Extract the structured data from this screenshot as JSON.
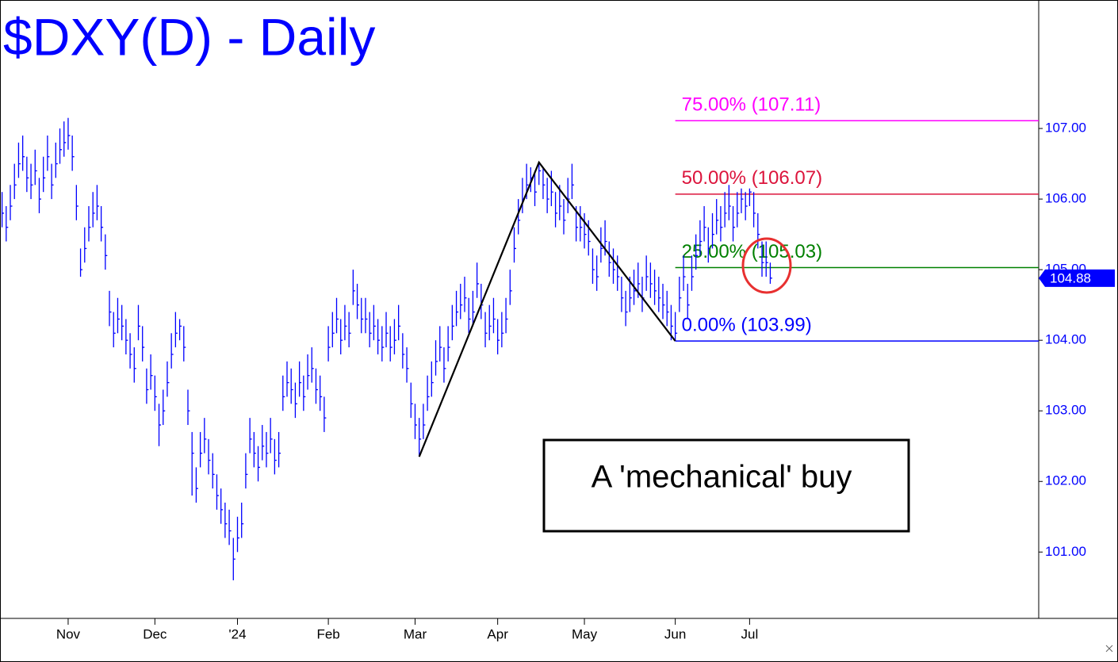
{
  "chart_data": {
    "type": "ohlc",
    "title": "$DXY(D) - Daily",
    "color": "#0000ff",
    "xlim": [
      -0.5,
      251
    ],
    "xticks": [
      {
        "value": 16,
        "label": "Nov"
      },
      {
        "value": 37,
        "label": "Dec"
      },
      {
        "value": 57,
        "label": "'24"
      },
      {
        "value": 79,
        "label": "Feb"
      },
      {
        "value": 100,
        "label": "Mar"
      },
      {
        "value": 120,
        "label": "Apr"
      },
      {
        "value": 141,
        "label": "May"
      },
      {
        "value": 163,
        "label": "Jun"
      },
      {
        "value": 181,
        "label": "Jul"
      }
    ],
    "ylim": [
      100.06,
      108.82
    ],
    "yticks": [
      {
        "value": 101,
        "label": "101.00"
      },
      {
        "value": 102,
        "label": "102.00"
      },
      {
        "value": 103,
        "label": "103.00"
      },
      {
        "value": 104,
        "label": "104.00"
      },
      {
        "value": 105,
        "label": "105.00"
      },
      {
        "value": 106,
        "label": "106.00"
      },
      {
        "value": 107,
        "label": "107.00"
      }
    ],
    "close": [
      105.8,
      105.6,
      105.9,
      106.2,
      106.5,
      106.6,
      106.3,
      106.2,
      106.4,
      106.0,
      106.3,
      106.6,
      106.2,
      106.5,
      106.7,
      106.8,
      106.9,
      106.6,
      105.9,
      105.0,
      105.3,
      105.6,
      105.8,
      105.9,
      105.6,
      105.2,
      104.4,
      104.1,
      104.3,
      104.2,
      104.0,
      103.8,
      103.6,
      104.2,
      103.9,
      103.3,
      103.5,
      103.2,
      102.8,
      103.0,
      103.4,
      103.8,
      104.1,
      104.2,
      103.9,
      103.0,
      102.4,
      101.9,
      102.4,
      102.6,
      102.3,
      102.1,
      101.8,
      101.6,
      101.4,
      101.3,
      100.9,
      101.2,
      101.4,
      102.1,
      102.6,
      102.4,
      102.2,
      102.5,
      102.4,
      102.6,
      102.3,
      102.4,
      103.2,
      103.4,
      103.3,
      103.1,
      103.4,
      103.2,
      103.5,
      103.6,
      103.3,
      103.2,
      102.9,
      103.9,
      104.1,
      104.3,
      104.0,
      104.2,
      104.1,
      104.7,
      104.5,
      104.3,
      104.3,
      104.1,
      104.2,
      104.0,
      103.9,
      104.1,
      103.9,
      104.0,
      104.2,
      103.8,
      103.6,
      103.1,
      102.8,
      102.6,
      102.8,
      103.2,
      103.4,
      103.7,
      103.9,
      103.6,
      103.9,
      104.2,
      104.4,
      104.5,
      104.6,
      104.3,
      104.4,
      104.8,
      104.5,
      104.1,
      104.2,
      104.3,
      104.0,
      104.1,
      104.3,
      104.7,
      105.3,
      105.7,
      106.0,
      106.2,
      106.3,
      106.1,
      106.4,
      106.2,
      106.0,
      106.1,
      105.8,
      105.9,
      105.7,
      106.0,
      106.2,
      105.6,
      105.6,
      105.5,
      105.4,
      105.0,
      104.9,
      105.3,
      105.4,
      105.1,
      105.0,
      104.9,
      104.6,
      104.4,
      104.6,
      104.7,
      104.8,
      104.6,
      104.9,
      104.8,
      104.7,
      104.6,
      104.5,
      104.4,
      104.2,
      104.1,
      104.6,
      104.9,
      104.5,
      104.9,
      105.2,
      105.4,
      105.6,
      105.3,
      105.5,
      105.7,
      105.6,
      105.8,
      105.9,
      105.6,
      105.8,
      106.0,
      105.9,
      106.1,
      105.8,
      105.5,
      105.1,
      105.1,
      104.88
    ],
    "high": [
      106.1,
      105.9,
      106.2,
      106.5,
      106.8,
      106.9,
      106.6,
      106.5,
      106.7,
      106.3,
      106.6,
      106.9,
      106.5,
      106.8,
      107.0,
      107.1,
      107.15,
      106.9,
      106.2,
      105.3,
      105.6,
      105.9,
      106.1,
      106.2,
      105.9,
      105.5,
      104.7,
      104.4,
      104.6,
      104.5,
      104.3,
      104.1,
      103.9,
      104.5,
      104.2,
      103.6,
      103.8,
      103.5,
      103.1,
      103.3,
      103.7,
      104.1,
      104.4,
      104.3,
      104.2,
      103.3,
      102.7,
      102.2,
      102.7,
      102.9,
      102.6,
      102.4,
      102.1,
      101.9,
      101.7,
      101.6,
      101.2,
      101.5,
      101.7,
      102.4,
      102.9,
      102.7,
      102.5,
      102.8,
      102.7,
      102.9,
      102.6,
      102.7,
      103.5,
      103.7,
      103.6,
      103.4,
      103.7,
      103.5,
      103.8,
      103.9,
      103.6,
      103.5,
      103.2,
      104.2,
      104.4,
      104.6,
      104.3,
      104.5,
      104.4,
      105.0,
      104.8,
      104.6,
      104.6,
      104.4,
      104.5,
      104.3,
      104.2,
      104.4,
      104.2,
      104.3,
      104.5,
      104.1,
      103.9,
      103.4,
      103.1,
      102.9,
      103.1,
      103.5,
      103.7,
      104.0,
      104.2,
      103.9,
      104.2,
      104.5,
      104.7,
      104.8,
      104.9,
      104.6,
      104.7,
      105.1,
      104.8,
      104.4,
      104.5,
      104.6,
      104.3,
      104.4,
      104.6,
      105.0,
      105.6,
      106.0,
      106.3,
      106.5,
      106.45,
      106.4,
      106.52,
      106.45,
      106.3,
      106.4,
      106.1,
      106.2,
      106.0,
      106.3,
      106.5,
      105.9,
      105.9,
      105.8,
      105.7,
      105.3,
      105.2,
      105.6,
      105.7,
      105.4,
      105.3,
      105.2,
      104.9,
      104.7,
      104.9,
      105.0,
      105.1,
      104.9,
      105.2,
      105.1,
      105.0,
      104.9,
      104.8,
      104.7,
      104.5,
      104.4,
      104.9,
      105.2,
      104.8,
      105.2,
      105.5,
      105.7,
      105.9,
      105.6,
      105.8,
      106.0,
      105.9,
      106.1,
      106.2,
      105.9,
      106.1,
      106.15,
      106.1,
      106.15,
      106.1,
      105.8,
      105.4,
      105.4,
      105.1
    ],
    "low": [
      105.6,
      105.4,
      105.7,
      106.0,
      106.3,
      106.4,
      106.1,
      106.0,
      106.2,
      105.8,
      106.1,
      106.4,
      106.0,
      106.3,
      106.5,
      106.6,
      106.7,
      106.4,
      105.7,
      104.9,
      105.1,
      105.4,
      105.6,
      105.7,
      105.4,
      105.0,
      104.2,
      103.9,
      104.1,
      104.0,
      103.8,
      103.6,
      103.4,
      104.0,
      103.7,
      103.1,
      103.3,
      103.0,
      102.5,
      102.8,
      103.2,
      103.6,
      103.9,
      104.0,
      103.7,
      102.8,
      101.8,
      101.7,
      102.2,
      102.4,
      102.1,
      101.9,
      101.6,
      101.4,
      101.2,
      101.1,
      100.6,
      101.0,
      101.2,
      101.9,
      102.4,
      102.2,
      102.0,
      102.3,
      102.2,
      102.4,
      102.1,
      102.2,
      103.0,
      103.2,
      103.1,
      102.9,
      103.2,
      103.0,
      103.3,
      103.4,
      103.1,
      103.0,
      102.7,
      103.7,
      103.9,
      104.1,
      103.8,
      104.0,
      103.9,
      104.5,
      104.3,
      104.1,
      104.1,
      103.9,
      104.0,
      103.8,
      103.7,
      103.9,
      103.7,
      103.8,
      104.0,
      103.6,
      103.4,
      102.9,
      102.6,
      102.35,
      102.6,
      103.0,
      103.2,
      103.5,
      103.7,
      103.4,
      103.7,
      104.0,
      104.2,
      104.3,
      104.4,
      104.1,
      104.2,
      104.6,
      104.3,
      103.9,
      104.0,
      104.1,
      103.8,
      103.9,
      104.1,
      104.5,
      105.1,
      105.5,
      105.8,
      106.0,
      106.1,
      105.9,
      106.2,
      106.0,
      105.8,
      105.9,
      105.6,
      105.7,
      105.5,
      105.8,
      106.0,
      105.4,
      105.4,
      105.3,
      105.2,
      104.8,
      104.7,
      105.1,
      105.2,
      104.9,
      104.8,
      104.7,
      104.4,
      104.2,
      104.4,
      104.5,
      104.6,
      104.4,
      104.7,
      104.6,
      104.5,
      104.4,
      104.3,
      104.2,
      104.0,
      103.99,
      104.4,
      104.7,
      104.3,
      104.7,
      105.0,
      105.2,
      105.4,
      105.1,
      105.3,
      105.5,
      105.4,
      105.6,
      105.7,
      105.4,
      105.6,
      105.8,
      105.7,
      105.9,
      105.6,
      105.3,
      104.9,
      104.9,
      104.8
    ],
    "last": 104.88,
    "pattern": {
      "x": [
        101,
        130,
        163
      ],
      "values": [
        102.35,
        106.52,
        103.99
      ],
      "color": "#000000"
    },
    "levels": [
      {
        "label": "75.00% (107.11)",
        "value": 107.11,
        "color": "#ff00ff"
      },
      {
        "label": "50.00% (106.07)",
        "value": 106.07,
        "color": "#dc143c"
      },
      {
        "label": "25.00% (105.03)",
        "value": 105.03,
        "color": "#008000"
      },
      {
        "label": "0.00% (103.99)",
        "value": 103.99,
        "color": "#0000ff"
      }
    ],
    "annotation": "A 'mechanical' buy"
  }
}
